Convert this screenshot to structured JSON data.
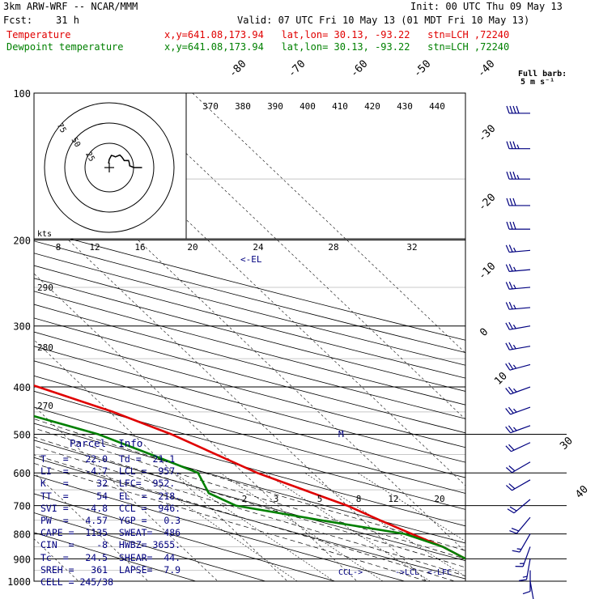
{
  "header": {
    "line1_left": "3km ARW-WRF -- NCAR/MMM",
    "line1_right": "Init: 00 UTC Thu 09 May 13",
    "line2_left": "Fcst:    31 h",
    "line2_right": "Valid: 07 UTC Fri 10 May 13 (01 MDT Fri 10 May 13)",
    "temp_label": "Temperature",
    "dew_label": "Dewpoint temperature",
    "temp_info": "x,y=641.08,173.94   lat,lon= 30.13, -93.22   stn=LCH ,72240",
    "dew_info": "x,y=641.08,173.94   lat,lon= 30.13, -93.22   stn=LCH ,72240"
  },
  "wind_legend": {
    "line1": "Full barb:",
    "line2": "5 m s⁻¹"
  },
  "hodograph": {
    "ring_labels": [
      "75",
      "50",
      "25"
    ],
    "units": "kts"
  },
  "parcel_info": {
    "title": "Parcel  Info",
    "rows": [
      "T   =   22.0  Td =  21.1",
      "LI  =   -4.7  LCL =  957.",
      "K   =     32  LFC=  952.",
      "TT  =     54  EL  =  218.",
      "SVI =   -4.8  CCL =  946.",
      "PW  =   4.57  YGP =   0.3",
      "CAPE =  1135  SWEAT=  486",
      "CIN  =    -8  HWBZ= 3655.",
      "Tc  =   24.5  SHEAR=  44.",
      "SREH =   361  LAPSE=  7.9",
      "CELL = 245/38"
    ]
  },
  "annotations": {
    "el": "<-EL",
    "m": "M",
    "ccl": "CCL->",
    "lcl": "->LCL",
    "lfc": "<-LFC"
  },
  "chart_data": {
    "type": "line",
    "title": "",
    "ylabel": "",
    "y_scale": "log-pressure (hPa)",
    "pressure_levels": [
      100,
      200,
      300,
      400,
      500,
      600,
      700,
      800,
      900,
      1000
    ],
    "isotherm_labels": [
      -80,
      -70,
      -60,
      -50,
      -40,
      -30,
      -20,
      -10,
      0,
      10,
      30,
      40
    ],
    "theta_labels": [
      370,
      380,
      390,
      400,
      410,
      420,
      430,
      440
    ],
    "mixing_ratio_labels_upper": [
      8,
      12,
      16,
      20,
      24,
      28,
      32
    ],
    "mixing_ratio_labels_lower": [
      2,
      3,
      5,
      8,
      12,
      20
    ],
    "theta_e_labels": [
      290,
      280,
      270
    ],
    "series": [
      {
        "name": "Temperature",
        "color": "#e00000",
        "points": [
          {
            "p": 100,
            "t": -62.0
          },
          {
            "p": 120,
            "t": -64.0
          },
          {
            "p": 150,
            "t": -64.5
          },
          {
            "p": 175,
            "t": -62.0
          },
          {
            "p": 200,
            "t": -57.0
          },
          {
            "p": 250,
            "t": -43.0
          },
          {
            "p": 300,
            "t": -33.0
          },
          {
            "p": 350,
            "t": -25.0
          },
          {
            "p": 400,
            "t": -16.5
          },
          {
            "p": 450,
            "t": -9.5
          },
          {
            "p": 500,
            "t": -4.5
          },
          {
            "p": 600,
            "t": 2.0
          },
          {
            "p": 700,
            "t": 10.0
          },
          {
            "p": 750,
            "t": 12.5
          },
          {
            "p": 800,
            "t": 15.0
          },
          {
            "p": 850,
            "t": 17.5
          },
          {
            "p": 900,
            "t": 19.0
          },
          {
            "p": 950,
            "t": 20.5
          },
          {
            "p": 1000,
            "t": 22.0
          }
        ]
      },
      {
        "name": "Dewpoint temperature",
        "color": "#008000",
        "points": [
          {
            "p": 100,
            "t": -90.0
          },
          {
            "p": 120,
            "t": -95.0
          },
          {
            "p": 150,
            "t": -98.0
          },
          {
            "p": 175,
            "t": -98.0
          },
          {
            "p": 200,
            "t": -92.0
          },
          {
            "p": 210,
            "t": -88.0
          },
          {
            "p": 230,
            "t": -89.0
          },
          {
            "p": 250,
            "t": -86.0
          },
          {
            "p": 275,
            "t": -84.0
          },
          {
            "p": 300,
            "t": -73.0
          },
          {
            "p": 350,
            "t": -50.0
          },
          {
            "p": 400,
            "t": -37.0
          },
          {
            "p": 450,
            "t": -23.0
          },
          {
            "p": 500,
            "t": -15.0
          },
          {
            "p": 550,
            "t": -10.5
          },
          {
            "p": 600,
            "t": -6.5
          },
          {
            "p": 660,
            "t": -8.0
          },
          {
            "p": 700,
            "t": -6.0
          },
          {
            "p": 750,
            "t": 4.0
          },
          {
            "p": 800,
            "t": 14.0
          },
          {
            "p": 850,
            "t": 17.5
          },
          {
            "p": 900,
            "t": 19.0
          },
          {
            "p": 950,
            "t": 20.0
          },
          {
            "p": 1000,
            "t": 21.1
          }
        ]
      }
    ],
    "wind_barbs": [
      {
        "p": 110,
        "dir": 270,
        "spd": 40
      },
      {
        "p": 130,
        "dir": 270,
        "spd": 35
      },
      {
        "p": 150,
        "dir": 270,
        "spd": 35
      },
      {
        "p": 170,
        "dir": 270,
        "spd": 30
      },
      {
        "p": 190,
        "dir": 270,
        "spd": 30
      },
      {
        "p": 210,
        "dir": 265,
        "spd": 25
      },
      {
        "p": 230,
        "dir": 265,
        "spd": 25
      },
      {
        "p": 250,
        "dir": 265,
        "spd": 25
      },
      {
        "p": 275,
        "dir": 265,
        "spd": 25
      },
      {
        "p": 300,
        "dir": 260,
        "spd": 25
      },
      {
        "p": 330,
        "dir": 260,
        "spd": 25
      },
      {
        "p": 360,
        "dir": 255,
        "spd": 25
      },
      {
        "p": 400,
        "dir": 250,
        "spd": 25
      },
      {
        "p": 440,
        "dir": 250,
        "spd": 25
      },
      {
        "p": 480,
        "dir": 250,
        "spd": 25
      },
      {
        "p": 520,
        "dir": 245,
        "spd": 20
      },
      {
        "p": 570,
        "dir": 240,
        "spd": 20
      },
      {
        "p": 620,
        "dir": 240,
        "spd": 20
      },
      {
        "p": 680,
        "dir": 230,
        "spd": 20
      },
      {
        "p": 740,
        "dir": 220,
        "spd": 20
      },
      {
        "p": 800,
        "dir": 210,
        "spd": 15
      },
      {
        "p": 850,
        "dir": 200,
        "spd": 15
      },
      {
        "p": 900,
        "dir": 190,
        "spd": 15
      },
      {
        "p": 950,
        "dir": 180,
        "spd": 10
      },
      {
        "p": 1000,
        "dir": 170,
        "spd": 5
      }
    ],
    "grid": true
  }
}
